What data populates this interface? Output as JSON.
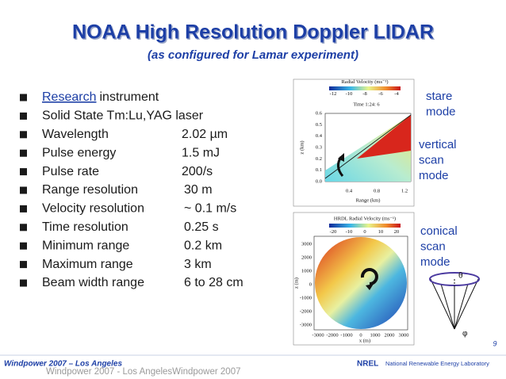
{
  "title": "NOAA High Resolution Doppler LIDAR",
  "subtitle": "(as configured for Lamar experiment)",
  "bullets": [
    {
      "link": "Research",
      "label": "instrument"
    },
    {
      "label": "Solid State Tm:Lu,YAG laser"
    },
    {
      "label": "Wavelength",
      "value": "2.02 µm"
    },
    {
      "label": "Pulse energy",
      "value": "1.5 mJ"
    },
    {
      "label": "Pulse rate",
      "value": "200/s"
    },
    {
      "label": "Range resolution",
      "value": "30 m"
    },
    {
      "label": "Velocity resolution",
      "value": "~ 0.1 m/s"
    },
    {
      "label": "Time resolution",
      "value": "0.25 s"
    },
    {
      "label": "Minimum range",
      "value": "0.2 km"
    },
    {
      "label": "Maximum range",
      "value": "3 km"
    },
    {
      "label": "Beam width range",
      "value": "6 to 28 cm"
    }
  ],
  "modes": [
    [
      "stare",
      "mode"
    ],
    [
      "vertical",
      "scan",
      "mode"
    ],
    [
      "conical",
      "scan",
      "mode"
    ]
  ],
  "stare_plot": {
    "title": "Radial Velocity (ms⁻¹)",
    "colorbar_ticks": [
      -12,
      -10,
      -8,
      -6,
      -4
    ],
    "time": "Time 1:24: 6",
    "y_label": "z (km)",
    "y_ticks": [
      "0.6",
      "0.5",
      "0.4",
      "0.3",
      "0.2",
      "0.1",
      "0.0"
    ],
    "x_label": "Range (km)",
    "x_ticks": [
      "0.4",
      "0.8",
      "1.2"
    ]
  },
  "conical_plot": {
    "title": "HRDL Radial Velocity (ms⁻¹)",
    "colorbar_ticks": [
      -20,
      -10,
      0,
      10,
      20
    ],
    "y_label": "z (m)",
    "y_ticks": [
      3000,
      2000,
      1000,
      0,
      -1000,
      -2000,
      -3000
    ],
    "x_label": "x (m)",
    "x_ticks": [
      -3000,
      -2000,
      -1000,
      0,
      1000,
      2000,
      3000
    ]
  },
  "cone_symbols": [
    "θ",
    "φ"
  ],
  "page_number": "9",
  "footer": "Windpower 2007 – Los Angeles",
  "footer_ghost": "Windpower 2007 - Los AngelesWindpower 2007",
  "logo_mark": "NREL",
  "logo": "National Renewable Energy Laboratory"
}
